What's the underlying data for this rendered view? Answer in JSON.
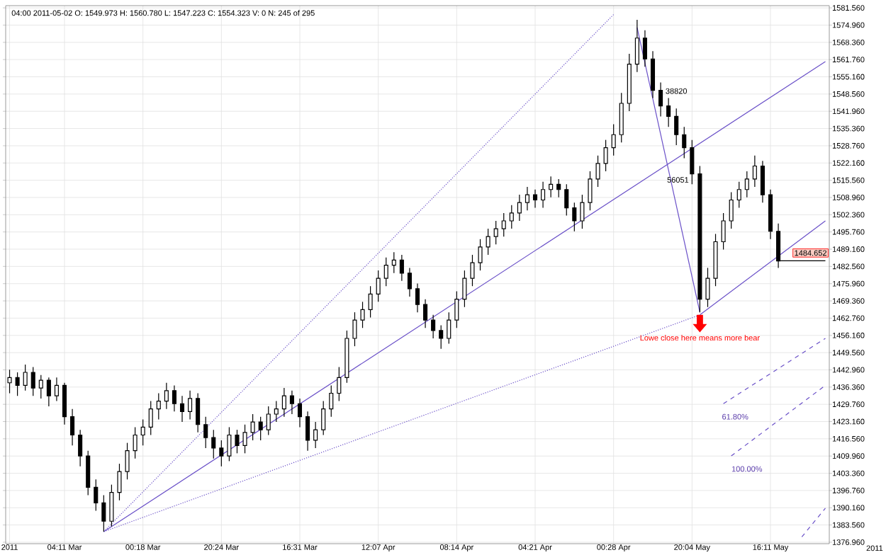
{
  "chart_data": {
    "type": "candlestick",
    "color": "#000000",
    "grid": true,
    "categories": [
      "2011",
      null,
      null,
      null,
      null,
      null,
      null,
      "04:11 Mar",
      null,
      null,
      null,
      null,
      null,
      null,
      null,
      null,
      null,
      "00:18 Mar",
      null,
      null,
      null,
      null,
      null,
      null,
      null,
      null,
      null,
      "20:24 Mar",
      null,
      null,
      null,
      null,
      null,
      null,
      null,
      null,
      null,
      "16:31 Mar",
      null,
      null,
      null,
      null,
      null,
      null,
      null,
      null,
      null,
      "12:07 Apr",
      null,
      null,
      null,
      null,
      null,
      null,
      null,
      null,
      null,
      "08:14 Apr",
      null,
      null,
      null,
      null,
      null,
      null,
      null,
      null,
      null,
      "04:21 Apr",
      null,
      null,
      null,
      null,
      null,
      null,
      null,
      null,
      null,
      "00:28 Apr",
      null,
      null,
      null,
      null,
      null,
      null,
      null,
      null,
      null,
      "20:04 May",
      null,
      null,
      null,
      null,
      null,
      null,
      null,
      null,
      null,
      "16:11 May",
      null,
      null,
      null,
      null,
      null,
      null,
      null
    ],
    "ohlc": [
      [
        1438,
        1443,
        1434,
        1440
      ],
      [
        1440,
        1442,
        1433,
        1437
      ],
      [
        1437,
        1445,
        1435,
        1442
      ],
      [
        1442,
        1444,
        1433,
        1436
      ],
      [
        1436,
        1441,
        1432,
        1439
      ],
      [
        1439,
        1440,
        1429,
        1433
      ],
      [
        1433,
        1440,
        1431,
        1437
      ],
      [
        1437,
        1438,
        1422,
        1425
      ],
      [
        1425,
        1428,
        1414,
        1418
      ],
      [
        1418,
        1420,
        1406,
        1410
      ],
      [
        1410,
        1412,
        1395,
        1398
      ],
      [
        1398,
        1401,
        1389,
        1392
      ],
      [
        1392,
        1395,
        1381,
        1385
      ],
      [
        1385,
        1399,
        1383,
        1396
      ],
      [
        1396,
        1407,
        1393,
        1404
      ],
      [
        1404,
        1415,
        1401,
        1412
      ],
      [
        1412,
        1421,
        1409,
        1418
      ],
      [
        1418,
        1424,
        1414,
        1421
      ],
      [
        1421,
        1431,
        1418,
        1428
      ],
      [
        1428,
        1434,
        1424,
        1431
      ],
      [
        1431,
        1438,
        1428,
        1435
      ],
      [
        1435,
        1437,
        1427,
        1430
      ],
      [
        1430,
        1433,
        1423,
        1427
      ],
      [
        1427,
        1435,
        1424,
        1432
      ],
      [
        1432,
        1434,
        1419,
        1422
      ],
      [
        1422,
        1425,
        1413,
        1417
      ],
      [
        1417,
        1420,
        1409,
        1413
      ],
      [
        1413,
        1416,
        1406,
        1410
      ],
      [
        1410,
        1421,
        1408,
        1418
      ],
      [
        1418,
        1420,
        1411,
        1414
      ],
      [
        1414,
        1422,
        1411,
        1419
      ],
      [
        1419,
        1426,
        1416,
        1423
      ],
      [
        1423,
        1425,
        1416,
        1420
      ],
      [
        1420,
        1429,
        1418,
        1426
      ],
      [
        1426,
        1431,
        1423,
        1428
      ],
      [
        1428,
        1436,
        1425,
        1433
      ],
      [
        1433,
        1435,
        1426,
        1430
      ],
      [
        1430,
        1432,
        1421,
        1425
      ],
      [
        1425,
        1427,
        1412,
        1416
      ],
      [
        1416,
        1423,
        1413,
        1420
      ],
      [
        1420,
        1431,
        1418,
        1428
      ],
      [
        1428,
        1437,
        1425,
        1434
      ],
      [
        1434,
        1444,
        1431,
        1440
      ],
      [
        1440,
        1458,
        1438,
        1455
      ],
      [
        1455,
        1465,
        1452,
        1462
      ],
      [
        1462,
        1469,
        1459,
        1466
      ],
      [
        1466,
        1475,
        1463,
        1472
      ],
      [
        1472,
        1481,
        1469,
        1478
      ],
      [
        1478,
        1486,
        1475,
        1483
      ],
      [
        1483,
        1488,
        1480,
        1485
      ],
      [
        1485,
        1487,
        1477,
        1480
      ],
      [
        1480,
        1482,
        1471,
        1474
      ],
      [
        1474,
        1476,
        1465,
        1468
      ],
      [
        1468,
        1470,
        1459,
        1462
      ],
      [
        1462,
        1464,
        1455,
        1458
      ],
      [
        1458,
        1460,
        1451,
        1455
      ],
      [
        1455,
        1465,
        1453,
        1462
      ],
      [
        1462,
        1473,
        1459,
        1470
      ],
      [
        1470,
        1481,
        1467,
        1478
      ],
      [
        1478,
        1487,
        1475,
        1484
      ],
      [
        1484,
        1493,
        1481,
        1490
      ],
      [
        1490,
        1497,
        1487,
        1494
      ],
      [
        1494,
        1500,
        1491,
        1497
      ],
      [
        1497,
        1503,
        1494,
        1500
      ],
      [
        1500,
        1506,
        1497,
        1503
      ],
      [
        1503,
        1510,
        1500,
        1507
      ],
      [
        1507,
        1513,
        1504,
        1510
      ],
      [
        1510,
        1512,
        1505,
        1508
      ],
      [
        1508,
        1515,
        1505,
        1512
      ],
      [
        1512,
        1517,
        1509,
        1514
      ],
      [
        1514,
        1516,
        1509,
        1512
      ],
      [
        1512,
        1514,
        1502,
        1505
      ],
      [
        1505,
        1507,
        1496,
        1500
      ],
      [
        1500,
        1510,
        1497,
        1507
      ],
      [
        1507,
        1519,
        1504,
        1516
      ],
      [
        1516,
        1525,
        1513,
        1522
      ],
      [
        1522,
        1531,
        1519,
        1528
      ],
      [
        1528,
        1537,
        1525,
        1533
      ],
      [
        1533,
        1549,
        1530,
        1545
      ],
      [
        1545,
        1564,
        1542,
        1560
      ],
      [
        1560,
        1577,
        1557,
        1570
      ],
      [
        1570,
        1573,
        1559,
        1562
      ],
      [
        1562,
        1565,
        1547,
        1550
      ],
      [
        1550,
        1553,
        1540,
        1544
      ],
      [
        1544,
        1547,
        1536,
        1540
      ],
      [
        1540,
        1543,
        1529,
        1533
      ],
      [
        1533,
        1536,
        1524,
        1528
      ],
      [
        1528,
        1531,
        1514,
        1518
      ],
      [
        1518,
        1521,
        1465,
        1470
      ],
      [
        1470,
        1482,
        1467,
        1478
      ],
      [
        1478,
        1495,
        1475,
        1492
      ],
      [
        1492,
        1503,
        1489,
        1500
      ],
      [
        1500,
        1511,
        1497,
        1508
      ],
      [
        1508,
        1515,
        1505,
        1512
      ],
      [
        1512,
        1519,
        1509,
        1516
      ],
      [
        1516,
        1525,
        1513,
        1521
      ],
      [
        1521,
        1523,
        1507,
        1510
      ],
      [
        1510,
        1512,
        1493,
        1496
      ],
      [
        1496,
        1499,
        1482,
        1484.652
      ],
      null,
      null,
      null,
      null,
      null,
      null
    ],
    "series": [
      {
        "type": "line",
        "color": "#6a50c8",
        "line_style": "solid",
        "values": [
          null,
          null,
          null,
          null,
          null,
          null,
          null,
          null,
          null,
          null,
          null,
          null,
          1381,
          null,
          null,
          null,
          null,
          null,
          null,
          null,
          null,
          null,
          null,
          null,
          null,
          null,
          null,
          null,
          null,
          null,
          null,
          null,
          null,
          null,
          null,
          null,
          null,
          null,
          null,
          null,
          null,
          null,
          null,
          null,
          null,
          null,
          null,
          null,
          null,
          null,
          null,
          null,
          null,
          null,
          null,
          null,
          null,
          null,
          null,
          null,
          null,
          null,
          null,
          null,
          null,
          null,
          null,
          null,
          null,
          null,
          null,
          null,
          null,
          null,
          null,
          null,
          null,
          null,
          null,
          null,
          null,
          null,
          null,
          null,
          null,
          null,
          null,
          null,
          null,
          null,
          null,
          null,
          null,
          null,
          null,
          null,
          null,
          null,
          null,
          null,
          null,
          null,
          null,
          null,
          1561
        ]
      },
      {
        "type": "line",
        "color": "#6a50c8",
        "line_style": "dotted",
        "values": [
          null,
          null,
          null,
          null,
          null,
          null,
          null,
          null,
          null,
          null,
          null,
          null,
          1381,
          null,
          null,
          null,
          null,
          null,
          null,
          null,
          null,
          null,
          null,
          null,
          null,
          null,
          null,
          null,
          null,
          null,
          null,
          null,
          null,
          null,
          null,
          null,
          null,
          null,
          null,
          null,
          null,
          null,
          null,
          null,
          null,
          null,
          null,
          null,
          null,
          null,
          null,
          null,
          null,
          null,
          null,
          null,
          null,
          null,
          null,
          null,
          null,
          null,
          null,
          null,
          null,
          null,
          null,
          null,
          null,
          null,
          null,
          null,
          null,
          null,
          null,
          null,
          null,
          1579,
          null,
          null,
          null,
          null,
          null,
          null,
          null,
          null,
          null,
          null,
          null,
          null,
          null,
          null,
          null,
          null,
          null,
          null,
          null,
          null,
          null,
          null,
          null,
          null,
          null,
          null,
          null
        ]
      },
      {
        "type": "line",
        "color": "#6a50c8",
        "line_style": "solid",
        "values": [
          null,
          null,
          null,
          null,
          null,
          null,
          null,
          null,
          null,
          null,
          null,
          null,
          null,
          null,
          null,
          null,
          null,
          null,
          null,
          null,
          null,
          null,
          null,
          null,
          null,
          null,
          null,
          null,
          null,
          null,
          null,
          null,
          null,
          null,
          null,
          null,
          null,
          null,
          null,
          null,
          null,
          null,
          null,
          null,
          null,
          null,
          null,
          null,
          null,
          null,
          null,
          null,
          null,
          null,
          null,
          null,
          null,
          null,
          null,
          null,
          null,
          null,
          null,
          null,
          null,
          null,
          null,
          null,
          null,
          null,
          null,
          null,
          null,
          null,
          null,
          null,
          null,
          null,
          null,
          null,
          1574,
          null,
          null,
          null,
          null,
          null,
          null,
          null,
          1465,
          null,
          null,
          null,
          null,
          null,
          null,
          null,
          null,
          null,
          null,
          null,
          null,
          null,
          null,
          null,
          null
        ]
      },
      {
        "type": "line",
        "color": "#6a50c8",
        "line_style": "solid",
        "values": [
          null,
          null,
          null,
          null,
          null,
          null,
          null,
          null,
          null,
          null,
          null,
          null,
          null,
          null,
          null,
          null,
          null,
          null,
          null,
          null,
          null,
          null,
          null,
          null,
          null,
          null,
          null,
          null,
          null,
          null,
          null,
          null,
          null,
          null,
          null,
          null,
          null,
          null,
          null,
          null,
          null,
          null,
          null,
          null,
          null,
          null,
          null,
          null,
          null,
          null,
          null,
          null,
          null,
          null,
          null,
          null,
          null,
          null,
          null,
          null,
          null,
          null,
          null,
          null,
          null,
          null,
          null,
          null,
          null,
          null,
          null,
          null,
          null,
          null,
          null,
          null,
          null,
          null,
          null,
          null,
          null,
          null,
          null,
          null,
          null,
          null,
          null,
          null,
          1464,
          null,
          null,
          null,
          null,
          null,
          null,
          null,
          null,
          null,
          null,
          null,
          null,
          null,
          null,
          null,
          1500
        ]
      },
      {
        "type": "line",
        "color": "#6a50c8",
        "line_style": "dotted",
        "values": [
          null,
          null,
          null,
          null,
          null,
          null,
          null,
          null,
          null,
          null,
          null,
          null,
          1381,
          null,
          null,
          null,
          null,
          null,
          null,
          null,
          null,
          null,
          null,
          null,
          null,
          null,
          null,
          null,
          null,
          null,
          null,
          null,
          null,
          null,
          null,
          null,
          null,
          null,
          null,
          null,
          null,
          null,
          null,
          null,
          null,
          null,
          null,
          null,
          null,
          null,
          null,
          null,
          null,
          null,
          null,
          null,
          null,
          null,
          null,
          null,
          null,
          null,
          null,
          null,
          null,
          null,
          null,
          null,
          null,
          null,
          null,
          null,
          null,
          null,
          null,
          null,
          null,
          null,
          null,
          null,
          null,
          null,
          null,
          null,
          null,
          null,
          null,
          null,
          1464,
          null,
          null,
          null,
          null,
          null,
          null,
          null,
          null,
          null,
          null,
          null,
          null,
          null,
          null,
          null,
          null
        ]
      },
      {
        "type": "line",
        "color": "#6a50c8",
        "line_style": "dashed",
        "values": [
          null,
          null,
          null,
          null,
          null,
          null,
          null,
          null,
          null,
          null,
          null,
          null,
          null,
          null,
          null,
          null,
          null,
          null,
          null,
          null,
          null,
          null,
          null,
          null,
          null,
          null,
          null,
          null,
          null,
          null,
          null,
          null,
          null,
          null,
          null,
          null,
          null,
          null,
          null,
          null,
          null,
          null,
          null,
          null,
          null,
          null,
          null,
          null,
          null,
          null,
          null,
          null,
          null,
          null,
          null,
          null,
          null,
          null,
          null,
          null,
          null,
          null,
          null,
          null,
          null,
          null,
          null,
          null,
          null,
          null,
          null,
          null,
          null,
          null,
          null,
          null,
          null,
          null,
          null,
          null,
          null,
          null,
          null,
          null,
          null,
          null,
          null,
          null,
          null,
          null,
          null,
          1430,
          null,
          null,
          null,
          null,
          null,
          null,
          null,
          null,
          null,
          null,
          null,
          null,
          1455
        ]
      },
      {
        "type": "line",
        "color": "#6a50c8",
        "line_style": "dashed",
        "values": [
          null,
          null,
          null,
          null,
          null,
          null,
          null,
          null,
          null,
          null,
          null,
          null,
          null,
          null,
          null,
          null,
          null,
          null,
          null,
          null,
          null,
          null,
          null,
          null,
          null,
          null,
          null,
          null,
          null,
          null,
          null,
          null,
          null,
          null,
          null,
          null,
          null,
          null,
          null,
          null,
          null,
          null,
          null,
          null,
          null,
          null,
          null,
          null,
          null,
          null,
          null,
          null,
          null,
          null,
          null,
          null,
          null,
          null,
          null,
          null,
          null,
          null,
          null,
          null,
          null,
          null,
          null,
          null,
          null,
          null,
          null,
          null,
          null,
          null,
          null,
          null,
          null,
          null,
          null,
          null,
          null,
          null,
          null,
          null,
          null,
          null,
          null,
          null,
          null,
          null,
          null,
          null,
          1410,
          null,
          null,
          null,
          null,
          null,
          null,
          null,
          null,
          null,
          null,
          null,
          1437
        ]
      },
      {
        "type": "line",
        "color": "#6a50c8",
        "line_style": "dashed",
        "values": [
          null,
          null,
          null,
          null,
          null,
          null,
          null,
          null,
          null,
          null,
          null,
          null,
          null,
          null,
          null,
          null,
          null,
          null,
          null,
          null,
          null,
          null,
          null,
          null,
          null,
          null,
          null,
          null,
          null,
          null,
          null,
          null,
          null,
          null,
          null,
          null,
          null,
          null,
          null,
          null,
          null,
          null,
          null,
          null,
          null,
          null,
          null,
          null,
          null,
          null,
          null,
          null,
          null,
          null,
          null,
          null,
          null,
          null,
          null,
          null,
          null,
          null,
          null,
          null,
          null,
          null,
          null,
          null,
          null,
          null,
          null,
          null,
          null,
          null,
          null,
          null,
          null,
          null,
          null,
          null,
          null,
          null,
          null,
          null,
          null,
          null,
          null,
          null,
          null,
          null,
          null,
          null,
          null,
          null,
          null,
          null,
          null,
          null,
          null,
          null,
          null,
          1379,
          null,
          null,
          1390
        ]
      },
      {
        "type": "line",
        "color": "#000000",
        "line_style": "solid",
        "values": [
          null,
          null,
          null,
          null,
          null,
          null,
          null,
          null,
          null,
          null,
          null,
          null,
          null,
          null,
          null,
          null,
          null,
          null,
          null,
          null,
          null,
          null,
          null,
          null,
          null,
          null,
          null,
          null,
          null,
          null,
          null,
          null,
          null,
          null,
          null,
          null,
          null,
          null,
          null,
          null,
          null,
          null,
          null,
          null,
          null,
          null,
          null,
          null,
          null,
          null,
          null,
          null,
          null,
          null,
          null,
          null,
          null,
          null,
          null,
          null,
          null,
          null,
          null,
          null,
          null,
          null,
          null,
          null,
          null,
          null,
          null,
          null,
          null,
          null,
          null,
          null,
          null,
          null,
          null,
          null,
          null,
          null,
          null,
          null,
          null,
          null,
          null,
          null,
          null,
          null,
          null,
          null,
          null,
          null,
          null,
          null,
          null,
          null,
          1484.7,
          null,
          null,
          null,
          null,
          null,
          1484.7
        ]
      }
    ],
    "ylim": [
      1376.4,
      1582.4
    ],
    "yticks": [
      {
        "value": 1376.96,
        "label": "1376.960"
      },
      {
        "value": 1383.56,
        "label": "1383.560"
      },
      {
        "value": 1390.16,
        "label": "1390.160"
      },
      {
        "value": 1396.76,
        "label": "1396.760"
      },
      {
        "value": 1403.36,
        "label": "1403.360"
      },
      {
        "value": 1409.96,
        "label": "1409.960"
      },
      {
        "value": 1416.56,
        "label": "1416.560"
      },
      {
        "value": 1423.16,
        "label": "1423.160"
      },
      {
        "value": 1429.76,
        "label": "1429.760"
      },
      {
        "value": 1436.36,
        "label": "1436.360"
      },
      {
        "value": 1442.96,
        "label": "1442.960"
      },
      {
        "value": 1449.56,
        "label": "1449.560"
      },
      {
        "value": 1456.16,
        "label": "1456.160"
      },
      {
        "value": 1462.76,
        "label": "1462.760"
      },
      {
        "value": 1469.36,
        "label": "1469.360"
      },
      {
        "value": 1475.96,
        "label": "1475.960"
      },
      {
        "value": 1482.56,
        "label": "1482.560"
      },
      {
        "value": 1489.16,
        "label": "1489.160"
      },
      {
        "value": 1495.76,
        "label": "1495.760"
      },
      {
        "value": 1502.36,
        "label": "1502.360"
      },
      {
        "value": 1508.96,
        "label": "1508.960"
      },
      {
        "value": 1515.56,
        "label": "1515.560"
      },
      {
        "value": 1522.16,
        "label": "1522.160"
      },
      {
        "value": 1528.76,
        "label": "1528.760"
      },
      {
        "value": 1535.36,
        "label": "1535.360"
      },
      {
        "value": 1541.96,
        "label": "1541.960"
      },
      {
        "value": 1548.56,
        "label": "1548.560"
      },
      {
        "value": 1555.16,
        "label": "1555.160"
      },
      {
        "value": 1561.76,
        "label": "1561.760"
      },
      {
        "value": 1568.36,
        "label": "1568.360"
      },
      {
        "value": 1574.96,
        "label": "1574.960"
      },
      {
        "value": 1581.56,
        "label": "1581.560"
      }
    ],
    "annotations": [
      "04:00 2011-05-02  O: 1549.973  H: 1560.780  L: 1547.223  C: 1554.323  V: 0  N: 245 of 295",
      "2011",
      {
        "text": "38820",
        "y": 1544
      },
      "56051",
      {
        "text": "Lowe close here means more bear",
        "y": 1465
      },
      "61.80%",
      "100.00%",
      "1484.652"
    ]
  }
}
